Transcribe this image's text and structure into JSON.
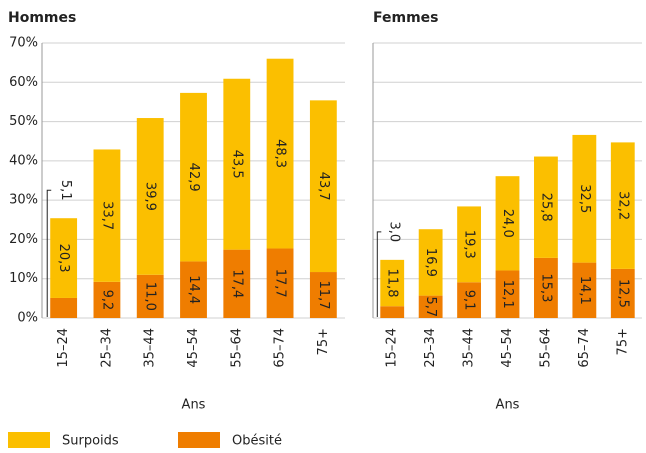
{
  "chart_data": [
    {
      "type": "stacked_bar",
      "title": "Hommes",
      "xlabel": "Ans",
      "categories": [
        "15–24",
        "25–34",
        "35–44",
        "45–54",
        "55–64",
        "65–74",
        "75+"
      ],
      "series": [
        {
          "name": "Obésité",
          "color": "#ef7d00",
          "values": [
            5.1,
            9.2,
            11.0,
            14.4,
            17.4,
            17.7,
            11.7
          ],
          "value_labels": [
            "5,1",
            "9,2",
            "11,0",
            "14,4",
            "17,4",
            "17,7",
            "11,7"
          ]
        },
        {
          "name": "Surpoids",
          "color": "#fbbf00",
          "values": [
            20.3,
            33.7,
            39.9,
            42.9,
            43.5,
            48.3,
            43.7
          ],
          "value_labels": [
            "20,3",
            "33,7",
            "39,9",
            "42,9",
            "43,5",
            "48,3",
            "43,7"
          ]
        }
      ],
      "ylim": [
        0,
        70
      ],
      "yticks": [
        {
          "value": 0,
          "label": "0%"
        },
        {
          "value": 10,
          "label": "10%"
        },
        {
          "value": 20,
          "label": "20%"
        },
        {
          "value": 30,
          "label": "30%"
        },
        {
          "value": 40,
          "label": "40%"
        },
        {
          "value": 50,
          "label": "50%"
        },
        {
          "value": 60,
          "label": "60%"
        },
        {
          "value": 70,
          "label": "70%"
        }
      ],
      "grid": true
    },
    {
      "type": "stacked_bar",
      "title": "Femmes",
      "xlabel": "Ans",
      "categories": [
        "15–24",
        "25–34",
        "35–44",
        "45–54",
        "55–64",
        "65–74",
        "75+"
      ],
      "series": [
        {
          "name": "Obésité",
          "color": "#ef7d00",
          "values": [
            3.0,
            5.7,
            9.1,
            12.1,
            15.3,
            14.1,
            12.5
          ],
          "value_labels": [
            "3,0",
            "5,7",
            "9,1",
            "12,1",
            "15,3",
            "14,1",
            "12,5"
          ]
        },
        {
          "name": "Surpoids",
          "color": "#fbbf00",
          "values": [
            11.8,
            16.9,
            19.3,
            24.0,
            25.8,
            32.5,
            32.2
          ],
          "value_labels": [
            "11,8",
            "16,9",
            "19,3",
            "24,0",
            "25,8",
            "32,5",
            "32,2"
          ]
        }
      ],
      "ylim": [
        0,
        70
      ],
      "yticks": [
        0,
        10,
        20,
        30,
        40,
        50,
        60,
        70
      ],
      "grid": true
    }
  ]
}
